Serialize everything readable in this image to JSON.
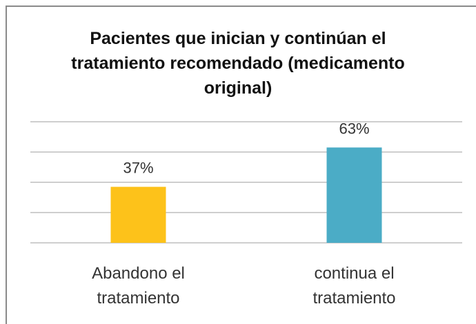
{
  "chart_data": {
    "type": "bar",
    "title": "Pacientes que inician y continúan el tratamiento recomendado (medicamento original)",
    "categories": [
      "Abandono el tratamiento",
      "continua el tratamiento"
    ],
    "values": [
      37,
      63
    ],
    "value_labels": [
      "37%",
      "63%"
    ],
    "colors": [
      "#fdc21a",
      "#4bacc6"
    ],
    "ylim": [
      0,
      80
    ],
    "yticks": [
      0,
      20,
      40,
      60,
      80
    ],
    "grid": true
  }
}
